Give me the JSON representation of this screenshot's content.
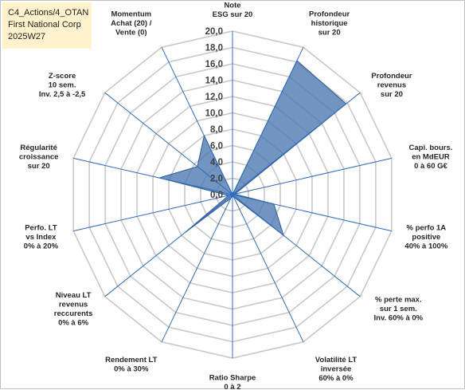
{
  "title_box": {
    "line1": "C4_Actions/4_OTAN",
    "line2": "First National Corp",
    "line3": "2025W27"
  },
  "colors": {
    "fill": "#4a76b0",
    "stroke": "#2f5a96",
    "grid": "#c8c8c8",
    "axis": "#2f6bbf",
    "title_bg": "#fff2cc"
  },
  "chart_data": {
    "type": "radar",
    "grid": true,
    "rmin": 0,
    "rmax": 20,
    "tick_labels": [
      "0,0",
      "2,0",
      "4,0",
      "6,0",
      "8,0",
      "10,0",
      "12,0",
      "14,0",
      "16,0",
      "18,0",
      "20,0"
    ],
    "categories": [
      "Note ESG sur 20",
      "Profondeur historique sur 20",
      "Profondeur revenus sur 20",
      "Capi. bours. en MdEUR 0 à 60 G€",
      "% perfo 1A positive 40% à 100%",
      "% perte max. sur 1 sem. Inv. 60% à 0%",
      "Volatilité LT inversée 60% à 0%",
      "Ratio Sharpe 0 à 2",
      "Rendement LT 0% à 30%",
      "Niveau LT revenus reccurents 0% à 6%",
      "Perfo. LT vs Index 0% à 20%",
      "Régularité croissance sur 20",
      "Z-score 10 sem. Inv. 2,5 à -2,5",
      "Momentum Achat (20) / Vente (0)"
    ],
    "label_lines": [
      [
        "Note",
        "ESG sur 20"
      ],
      [
        "Profondeur",
        "historique",
        "sur 20"
      ],
      [
        "Profondeur",
        "revenus",
        "sur 20"
      ],
      [
        "Capi. bours.",
        "en MdEUR",
        "0 à 60 G€"
      ],
      [
        "% perfo 1A",
        "positive",
        "40% à 100%"
      ],
      [
        "% perte max.",
        "sur 1 sem.",
        "Inv. 60% à 0%"
      ],
      [
        "Volatilité LT",
        "inversée",
        "60% à 0%"
      ],
      [
        "Ratio Sharpe",
        "0 à 2"
      ],
      [
        "Rendement LT",
        "0% à 30%"
      ],
      [
        "Niveau LT",
        "revenus",
        "reccurents",
        "0% à 6%"
      ],
      [
        "Perfo. LT",
        "vs Index",
        "0% à 20%"
      ],
      [
        "Régularité",
        "croissance",
        "sur 20"
      ],
      [
        "Z-score",
        "10 sem.",
        "Inv. 2,5 à -2,5"
      ],
      [
        "Momentum",
        "Achat (20) /",
        "Vente (0)"
      ]
    ],
    "series": [
      {
        "values": [
          0,
          18.2,
          17.8,
          0.3,
          5.2,
          8.0,
          0.3,
          0.2,
          0.5,
          7.5,
          0.5,
          9.2,
          5.5,
          8.0
        ]
      }
    ]
  }
}
